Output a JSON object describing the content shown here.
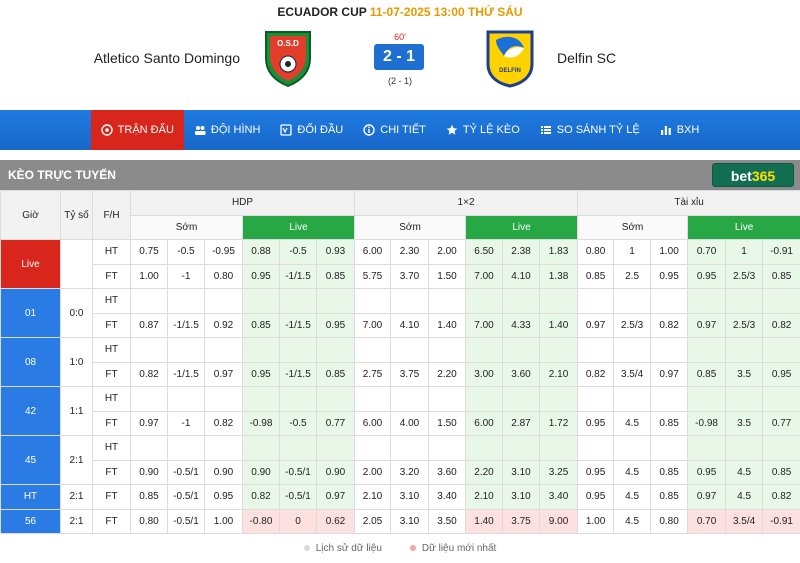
{
  "header": {
    "league": "ECUADOR CUP",
    "datetime": "11-07-2025 13:00 THỨ SÁU",
    "home": "Atletico Santo Domingo",
    "away": "Delfin SC",
    "minute": "60'",
    "score": "2 - 1",
    "ht_score": "(2 - 1)",
    "home_logo_text": "O.S.D",
    "away_logo_text": "DELFIN"
  },
  "nav": [
    {
      "label": "TRẬN ĐẤU",
      "icon": "soccer-ball-icon",
      "active": true
    },
    {
      "label": "ĐỘI HÌNH",
      "icon": "team-icon",
      "active": false
    },
    {
      "label": "ĐỐI ĐẦU",
      "icon": "versus-icon",
      "active": false
    },
    {
      "label": "CHI TIẾT",
      "icon": "detail-icon",
      "active": false
    },
    {
      "label": "TỶ LỆ KÈO",
      "icon": "star-icon",
      "active": false
    },
    {
      "label": "SO SÁNH TỶ LỆ",
      "icon": "list-icon",
      "active": false
    },
    {
      "label": "BXH",
      "icon": "bar-chart-icon",
      "active": false
    }
  ],
  "section": {
    "title": "KÈO TRỰC TUYẾN",
    "bookmaker_a": "bet",
    "bookmaker_b": "365"
  },
  "table": {
    "cols": {
      "time": "Giờ",
      "score": "Tỷ số",
      "fh": "F/H"
    },
    "groups": [
      "HDP",
      "1×2",
      "Tài xỉu"
    ],
    "early": "Sớm",
    "live": "Live",
    "rows": [
      {
        "time": "Live",
        "score": "",
        "tag": "live",
        "span": 2,
        "fh": "HT",
        "cells": [
          "0.75",
          "-0.5",
          "-0.95",
          "0.88",
          "-0.5",
          "0.93",
          "6.00",
          "2.30",
          "2.00",
          "6.50",
          "2.38",
          "1.83",
          "0.80",
          "1",
          "1.00",
          "0.70",
          "1",
          "-0.91"
        ],
        "hot": false
      },
      {
        "fh": "FT",
        "cells": [
          "1.00",
          "-1",
          "0.80",
          "0.95",
          "-1/1.5",
          "0.85",
          "5.75",
          "3.70",
          "1.50",
          "7.00",
          "4.10",
          "1.38",
          "0.85",
          "2.5",
          "0.95",
          "0.95",
          "2.5/3",
          "0.85"
        ],
        "hot": false
      },
      {
        "time": "01",
        "score": "0:0",
        "tag": "blue",
        "span": 2,
        "fh": "HT",
        "cells": [
          "",
          "",
          "",
          "",
          "",
          "",
          "",
          "",
          "",
          "",
          "",
          "",
          "",
          "",
          "",
          "",
          "",
          ""
        ],
        "hot": false
      },
      {
        "fh": "FT",
        "cells": [
          "0.87",
          "-1/1.5",
          "0.92",
          "0.85",
          "-1/1.5",
          "0.95",
          "7.00",
          "4.10",
          "1.40",
          "7.00",
          "4.33",
          "1.40",
          "0.97",
          "2.5/3",
          "0.82",
          "0.97",
          "2.5/3",
          "0.82"
        ],
        "hot": false
      },
      {
        "time": "08",
        "score": "1:0",
        "tag": "blue",
        "span": 2,
        "fh": "HT",
        "cells": [
          "",
          "",
          "",
          "",
          "",
          "",
          "",
          "",
          "",
          "",
          "",
          "",
          "",
          "",
          "",
          "",
          "",
          ""
        ],
        "hot": false
      },
      {
        "fh": "FT",
        "cells": [
          "0.82",
          "-1/1.5",
          "0.97",
          "0.95",
          "-1/1.5",
          "0.85",
          "2.75",
          "3.75",
          "2.20",
          "3.00",
          "3.60",
          "2.10",
          "0.82",
          "3.5/4",
          "0.97",
          "0.85",
          "3.5",
          "0.95"
        ],
        "hot": false
      },
      {
        "time": "42",
        "score": "1:1",
        "tag": "blue",
        "span": 2,
        "fh": "HT",
        "cells": [
          "",
          "",
          "",
          "",
          "",
          "",
          "",
          "",
          "",
          "",
          "",
          "",
          "",
          "",
          "",
          "",
          "",
          ""
        ],
        "hot": false
      },
      {
        "fh": "FT",
        "cells": [
          "0.97",
          "-1",
          "0.82",
          "-0.98",
          "-0.5",
          "0.77",
          "6.00",
          "4.00",
          "1.50",
          "6.00",
          "2.87",
          "1.72",
          "0.95",
          "4.5",
          "0.85",
          "-0.98",
          "3.5",
          "0.77"
        ],
        "hot": false
      },
      {
        "time": "45",
        "score": "2:1",
        "tag": "blue",
        "span": 2,
        "fh": "HT",
        "cells": [
          "",
          "",
          "",
          "",
          "",
          "",
          "",
          "",
          "",
          "",
          "",
          "",
          "",
          "",
          "",
          "",
          "",
          ""
        ],
        "hot": false
      },
      {
        "fh": "FT",
        "cells": [
          "0.90",
          "-0.5/1",
          "0.90",
          "0.90",
          "-0.5/1",
          "0.90",
          "2.00",
          "3.20",
          "3.60",
          "2.20",
          "3.10",
          "3.25",
          "0.95",
          "4.5",
          "0.85",
          "0.95",
          "4.5",
          "0.85"
        ],
        "hot": false
      },
      {
        "time": "HT",
        "score": "2:1",
        "tag": "blue",
        "span": 1,
        "fh": "FT",
        "cells": [
          "0.85",
          "-0.5/1",
          "0.95",
          "0.82",
          "-0.5/1",
          "0.97",
          "2.10",
          "3.10",
          "3.40",
          "2.10",
          "3.10",
          "3.40",
          "0.95",
          "4.5",
          "0.85",
          "0.97",
          "4.5",
          "0.82"
        ],
        "hot": false
      },
      {
        "time": "56",
        "score": "2:1",
        "tag": "blue",
        "span": 1,
        "fh": "FT",
        "cells": [
          "0.80",
          "-0.5/1",
          "1.00",
          "-0.80",
          "0",
          "0.62",
          "2.05",
          "3.10",
          "3.50",
          "1.40",
          "3.75",
          "9.00",
          "1.00",
          "4.5",
          "0.80",
          "0.70",
          "3.5/4",
          "-0.91"
        ],
        "hot": true
      }
    ]
  },
  "legend": {
    "history": "Lịch sử dữ liệu",
    "latest": "Dữ liệu mới nhất"
  },
  "colors": {
    "nav": "#1a73e8",
    "active": "#d9261c",
    "live_header": "#27a845",
    "live_cell": "#e8f7e8",
    "hot_cell": "#fde0e0",
    "bet365": "#126e51"
  }
}
